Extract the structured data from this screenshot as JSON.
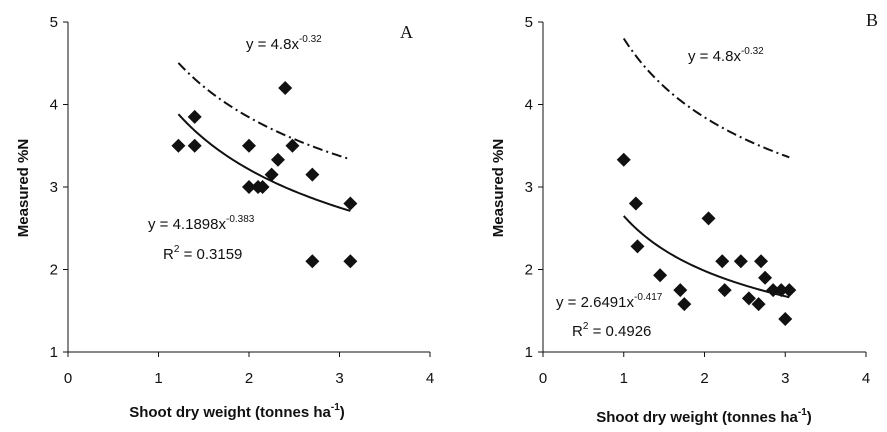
{
  "chart_data": [
    {
      "type": "scatter",
      "panel_label": "A",
      "xlabel": "Shoot dry weight (tonnes ha",
      "xlabel_sup": "-1",
      "xlabel_end": ")",
      "ylabel": "Measured %N",
      "xlim": [
        0,
        4
      ],
      "ylim": [
        1,
        5
      ],
      "xticks": [
        "0",
        "1",
        "2",
        "3",
        "4"
      ],
      "yticks": [
        "1",
        "2",
        "3",
        "4",
        "5"
      ],
      "points": [
        [
          1.22,
          3.5
        ],
        [
          1.4,
          3.85
        ],
        [
          1.4,
          3.5
        ],
        [
          2.0,
          3.5
        ],
        [
          2.0,
          3.0
        ],
        [
          2.1,
          3.0
        ],
        [
          2.15,
          3.0
        ],
        [
          2.25,
          3.15
        ],
        [
          2.32,
          3.33
        ],
        [
          2.4,
          4.2
        ],
        [
          2.48,
          3.5
        ],
        [
          2.7,
          3.15
        ],
        [
          2.7,
          2.1
        ],
        [
          3.12,
          2.8
        ],
        [
          3.12,
          2.1
        ]
      ],
      "fit_curve": {
        "a": 4.1898,
        "b": -0.383,
        "x_range": [
          1.22,
          3.12
        ]
      },
      "reference_curve": {
        "a": 4.8,
        "b": -0.32,
        "x_range": [
          1.22,
          3.12
        ]
      },
      "annotations": {
        "reference_eq_base": "y = 4.8x",
        "reference_eq_exp": "-0.32",
        "fit_eq_base": "y = 4.1898x",
        "fit_eq_exp": "-0.383",
        "r2_base": "R",
        "r2_exp": "2",
        "r2_value": " = 0.3159"
      },
      "grid": false,
      "legend": "none"
    },
    {
      "type": "scatter",
      "panel_label": "B",
      "xlabel": "Shoot dry weight (tonnes ha",
      "xlabel_sup": "-1",
      "xlabel_end": ")",
      "ylabel": "Measured %N",
      "xlim": [
        0,
        4
      ],
      "ylim": [
        1,
        5
      ],
      "xticks": [
        "0",
        "1",
        "2",
        "3",
        "4"
      ],
      "yticks": [
        "1",
        "2",
        "3",
        "4",
        "5"
      ],
      "points": [
        [
          1.0,
          3.33
        ],
        [
          1.15,
          2.8
        ],
        [
          1.17,
          2.28
        ],
        [
          1.45,
          1.93
        ],
        [
          1.7,
          1.75
        ],
        [
          1.75,
          1.58
        ],
        [
          2.05,
          2.62
        ],
        [
          2.22,
          2.1
        ],
        [
          2.25,
          1.75
        ],
        [
          2.45,
          2.1
        ],
        [
          2.55,
          1.65
        ],
        [
          2.67,
          1.58
        ],
        [
          2.7,
          2.1
        ],
        [
          2.75,
          1.9
        ],
        [
          2.85,
          1.75
        ],
        [
          2.95,
          1.75
        ],
        [
          3.0,
          1.4
        ],
        [
          3.05,
          1.75
        ]
      ],
      "fit_curve": {
        "a": 2.6491,
        "b": -0.417,
        "x_range": [
          1.0,
          3.05
        ]
      },
      "reference_curve": {
        "a": 4.8,
        "b": -0.32,
        "x_range": [
          1.0,
          3.05
        ]
      },
      "annotations": {
        "reference_eq_base": "y = 4.8x",
        "reference_eq_exp": "-0.32",
        "fit_eq_base": "y = 2.6491x",
        "fit_eq_exp": "-0.417",
        "r2_base": "R",
        "r2_exp": "2",
        "r2_value": " = 0.4926"
      },
      "grid": false,
      "legend": "none"
    }
  ]
}
